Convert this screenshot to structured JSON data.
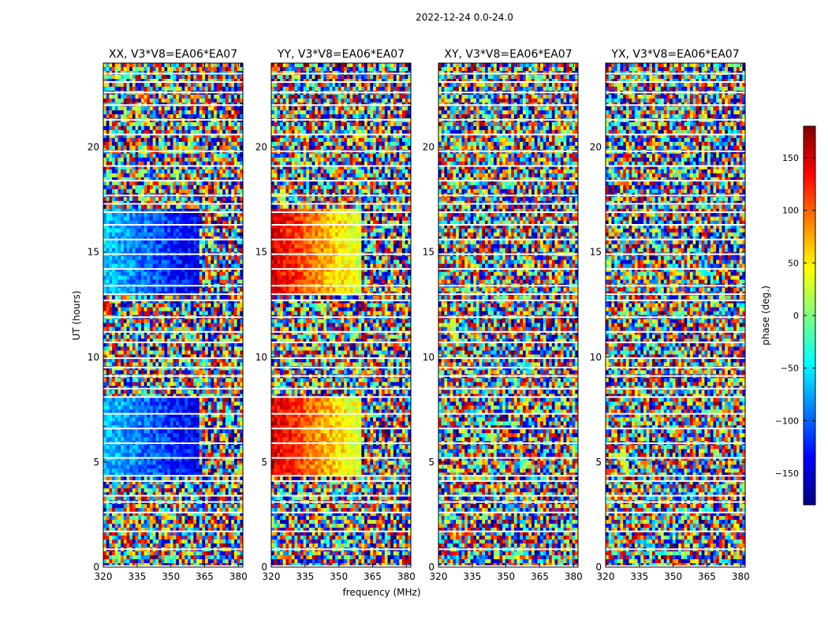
{
  "figure": {
    "suptitle": "2022-12-24 0.0-24.0"
  },
  "chart_data": {
    "type": "heatmap",
    "xlabel": "frequency (MHz)",
    "ylabel": "UT (hours)",
    "xlim": [
      320,
      382
    ],
    "ylim": [
      0,
      24
    ],
    "xticks": [
      320,
      335,
      350,
      365,
      380
    ],
    "yticks": [
      0,
      5,
      10,
      15,
      20
    ],
    "panels": [
      {
        "title": "XX, V3*V8=EA06*EA07",
        "pattern": "xx"
      },
      {
        "title": "YY, V3*V8=EA06*EA07",
        "pattern": "yy"
      },
      {
        "title": "XY, V3*V8=EA06*EA07",
        "pattern": "noise"
      },
      {
        "title": "YX, V3*V8=EA06*EA07",
        "pattern": "noise"
      }
    ],
    "colorbar": {
      "label": "phase (deg.)",
      "range": [
        -180,
        180
      ],
      "ticks": [
        150,
        100,
        50,
        0,
        -50,
        -100,
        -150
      ],
      "colormap": "jet",
      "colors": [
        "#00007f",
        "#0000ff",
        "#007fff",
        "#00ffff",
        "#7fff7f",
        "#ffff00",
        "#ff7f00",
        "#ff0000",
        "#7f0000"
      ]
    },
    "gaps_hours": [
      0.05,
      0.85,
      1.7,
      2.6,
      3.1,
      3.4,
      4.1,
      4.35,
      5.2,
      5.9,
      6.6,
      7.3,
      8.1,
      8.5,
      9.1,
      9.5,
      9.95,
      10.7,
      11.2,
      11.9,
      12.7,
      13.0,
      13.4,
      14.2,
      14.9,
      15.6,
      16.3,
      16.9,
      17.3,
      17.7,
      18.4,
      19.1,
      19.8,
      20.6,
      21.3,
      22.0,
      22.6,
      23.1,
      23.5
    ]
  }
}
